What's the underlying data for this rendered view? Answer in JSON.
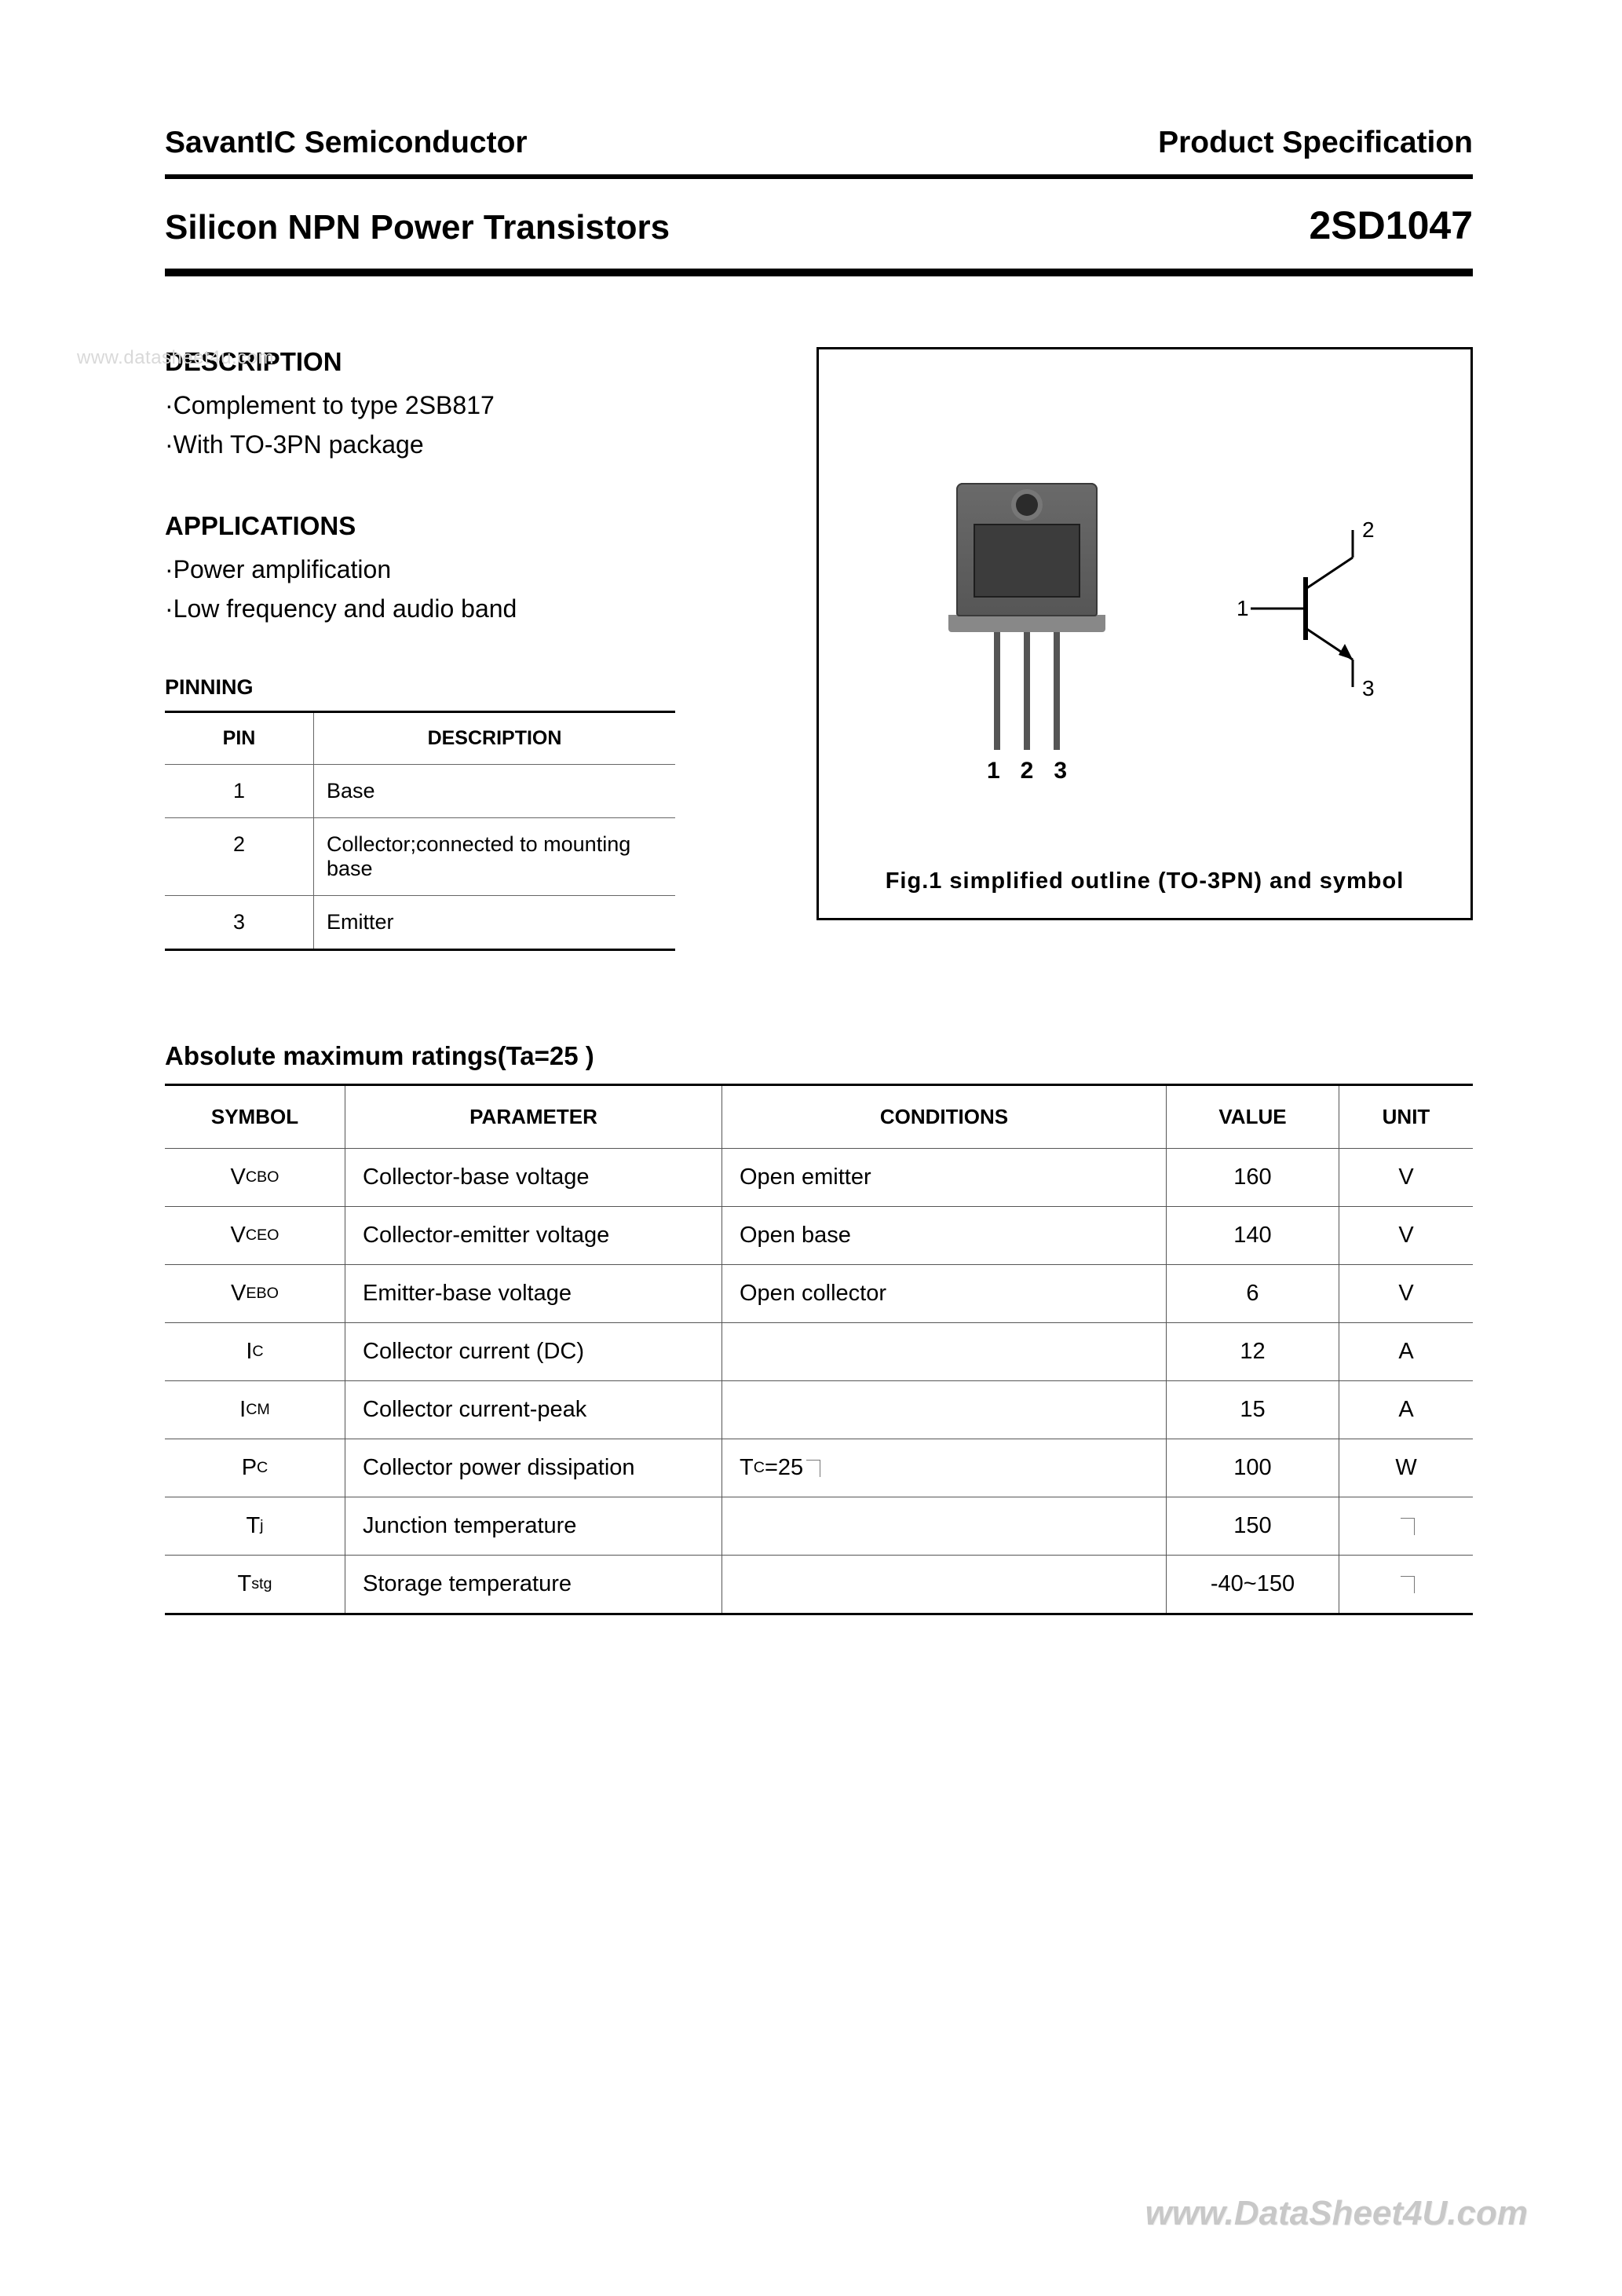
{
  "header": {
    "company": "SavantIC Semiconductor",
    "spec_label": "Product Specification",
    "title_left": "Silicon NPN Power Transistors",
    "part_number": "2SD1047"
  },
  "watermark_top": "www.datasheet4u.com",
  "watermark_bottom": "www.DataSheet4U.com",
  "description": {
    "heading": "DESCRIPTION",
    "lines": [
      "·Complement to type 2SB817",
      "·With TO-3PN package"
    ]
  },
  "applications": {
    "heading": "APPLICATIONS",
    "lines": [
      "·Power amplification",
      "·Low frequency and audio band"
    ]
  },
  "pinning": {
    "heading": "PINNING",
    "columns": [
      "PIN",
      "DESCRIPTION"
    ],
    "rows": [
      {
        "pin": "1",
        "desc": "Base"
      },
      {
        "pin": "2",
        "desc": "Collector;connected to mounting base"
      },
      {
        "pin": "3",
        "desc": "Emitter"
      }
    ]
  },
  "figure": {
    "caption": "Fig.1  simplified  outline  (TO-3PN)  and  symbol",
    "lead_labels": [
      "1",
      "2",
      "3"
    ],
    "symbol_labels": {
      "base": "1",
      "collector": "2",
      "emitter": "3"
    },
    "colors": {
      "pkg_body": "#5e5e5e",
      "pkg_die": "#3c3c3c",
      "lead": "#555555",
      "border": "#000000"
    }
  },
  "ratings": {
    "heading": "Absolute maximum ratings(Ta=25  )",
    "columns": [
      "SYMBOL",
      "PARAMETER",
      "CONDITIONS",
      "VALUE",
      "UNIT"
    ],
    "rows": [
      {
        "symbol_html": "V<sub>CBO</sub>",
        "parameter": "Collector-base voltage",
        "conditions": "Open emitter",
        "value": "160",
        "unit": "V"
      },
      {
        "symbol_html": "V<sub>CEO</sub>",
        "parameter": "Collector-emitter voltage",
        "conditions": "Open base",
        "value": "140",
        "unit": "V"
      },
      {
        "symbol_html": "V<sub>EBO</sub>",
        "parameter": "Emitter-base voltage",
        "conditions": "Open collector",
        "value": "6",
        "unit": "V"
      },
      {
        "symbol_html": "I<sub>C</sub>",
        "parameter": "Collector current (DC)",
        "conditions": "",
        "value": "12",
        "unit": "A"
      },
      {
        "symbol_html": "I<sub>CM</sub>",
        "parameter": "Collector current-peak",
        "conditions": "",
        "value": "15",
        "unit": "A"
      },
      {
        "symbol_html": "P<sub>C</sub>",
        "parameter": "Collector power dissipation",
        "conditions_html": "T<sub>C</sub>=25<span class='degree-box'></span>",
        "value": "100",
        "unit": "W"
      },
      {
        "symbol_html": "T<sub>j</sub>",
        "parameter": "Junction temperature",
        "conditions": "",
        "value": "150",
        "unit_html": "<span class='degree-box'></span>"
      },
      {
        "symbol_html": "T<sub>stg</sub>",
        "parameter": "Storage temperature",
        "conditions": "",
        "value": "-40~150",
        "unit_html": "<span class='degree-box'></span>"
      }
    ]
  },
  "style": {
    "page_bg": "#ffffff",
    "text_color": "#000000",
    "rule_heavy": "#000000",
    "rule_light": "#666666",
    "watermark_color": "#c8c8c8",
    "font_family": "Arial",
    "heading_fontsize_pt": 16,
    "body_fontsize_pt": 15,
    "table_header_fontsize_pt": 12
  }
}
